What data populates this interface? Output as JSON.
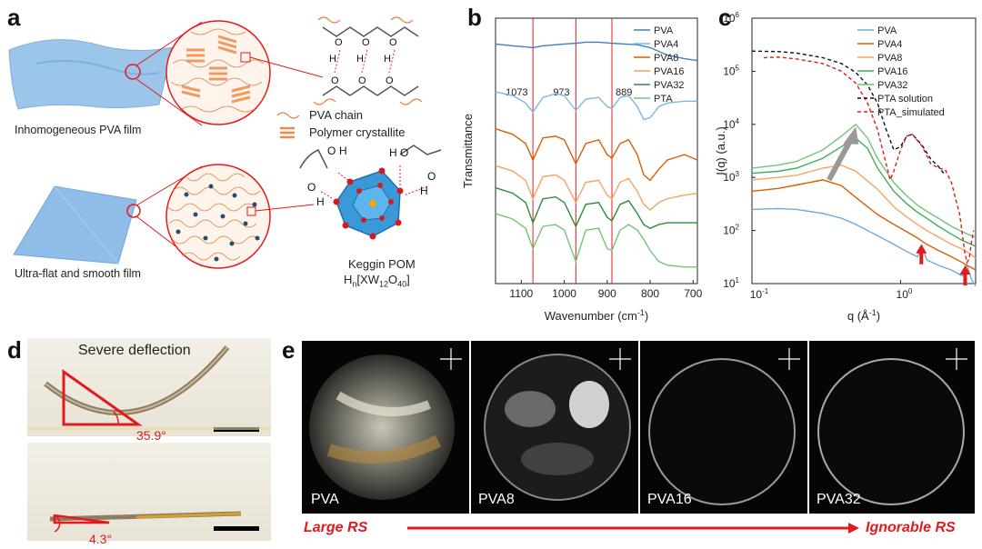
{
  "panel_a": {
    "label": "a",
    "film1_caption": "Inhomogeneous PVA film",
    "film2_caption": "Ultra-flat and smooth film",
    "legend_chain": "PVA chain",
    "legend_crystallite": "Polymer crystallite",
    "pom_title": "Keggin POM",
    "pom_formula_main": "H",
    "pom_formula_sub_n": "n",
    "pom_formula_a": "[XW",
    "pom_formula_sub_12": "12",
    "pom_formula_b": "O",
    "pom_formula_sub_40": "40",
    "pom_formula_c": "]",
    "atom_O": "O",
    "atom_H": "H"
  },
  "panel_b": {
    "label": "b",
    "chart_data": {
      "type": "line",
      "title": "",
      "xlabel": "Wavenumber (cm",
      "xlabel_sup": "-1",
      "xlabel_end": ")",
      "ylabel": "Transmittance",
      "xlim": [
        1160,
        690
      ],
      "xticks": [
        "1100",
        "1000",
        "900",
        "800",
        "700"
      ],
      "xtick_values": [
        1100,
        1000,
        900,
        800,
        700
      ],
      "reference_lines": [
        1073,
        973,
        889
      ],
      "reference_labels": [
        "1073",
        "973",
        "889"
      ],
      "series": [
        {
          "name": "PVA",
          "color": "#3f7fbf",
          "x": [
            1160,
            1120,
            1090,
            1073,
            1050,
            1000,
            973,
            950,
            920,
            889,
            860,
            830,
            800,
            760,
            720,
            690
          ],
          "y": [
            8.9,
            8.85,
            8.82,
            8.8,
            8.85,
            8.9,
            8.92,
            8.95,
            8.95,
            8.92,
            8.9,
            8.88,
            8.8,
            8.6,
            8.5,
            8.45
          ]
        },
        {
          "name": "PVA4",
          "color": "#7fb7e0",
          "x": [
            1160,
            1120,
            1090,
            1073,
            1050,
            1020,
            1000,
            973,
            950,
            920,
            900,
            889,
            870,
            850,
            830,
            815,
            800,
            780,
            760,
            720,
            690
          ],
          "y": [
            7.6,
            7.5,
            7.3,
            7.05,
            7.45,
            7.55,
            7.5,
            7.1,
            7.4,
            7.45,
            7.2,
            7.15,
            7.45,
            7.5,
            7.2,
            6.85,
            6.9,
            7.2,
            7.3,
            7.35,
            7.35
          ]
        },
        {
          "name": "PVA8",
          "color": "#d95f02",
          "x": [
            1160,
            1120,
            1090,
            1073,
            1050,
            1020,
            1000,
            973,
            950,
            920,
            900,
            889,
            870,
            850,
            830,
            815,
            800,
            780,
            760,
            720,
            690
          ],
          "y": [
            6.6,
            6.45,
            6.2,
            5.75,
            6.35,
            6.4,
            6.3,
            5.65,
            6.2,
            6.3,
            5.9,
            5.8,
            6.2,
            6.3,
            5.9,
            5.35,
            5.2,
            5.5,
            5.75,
            5.9,
            5.75
          ]
        },
        {
          "name": "PVA16",
          "color": "#f4a460",
          "x": [
            1160,
            1120,
            1090,
            1073,
            1050,
            1020,
            1000,
            973,
            950,
            920,
            900,
            889,
            870,
            850,
            830,
            815,
            800,
            780,
            760,
            720,
            690
          ],
          "y": [
            5.6,
            5.45,
            5.2,
            4.7,
            5.3,
            5.35,
            5.2,
            4.6,
            5.15,
            5.2,
            4.8,
            4.7,
            5.15,
            5.25,
            4.9,
            4.55,
            4.4,
            4.6,
            4.7,
            4.8,
            4.85
          ]
        },
        {
          "name": "PVA32",
          "color": "#2e8b3a",
          "x": [
            1160,
            1120,
            1090,
            1073,
            1050,
            1020,
            1000,
            973,
            950,
            920,
            900,
            889,
            870,
            850,
            830,
            815,
            800,
            780,
            760,
            720,
            690
          ],
          "y": [
            5.0,
            4.85,
            4.6,
            4.05,
            4.7,
            4.75,
            4.6,
            3.95,
            4.55,
            4.6,
            4.2,
            4.1,
            4.55,
            4.65,
            4.3,
            4.0,
            3.9,
            4.0,
            4.05,
            4.05,
            4.05
          ]
        },
        {
          "name": "PTA",
          "color": "#74c476",
          "x": [
            1160,
            1120,
            1090,
            1073,
            1050,
            1020,
            1000,
            973,
            950,
            920,
            900,
            889,
            870,
            850,
            830,
            815,
            800,
            780,
            760,
            720,
            690
          ],
          "y": [
            4.3,
            4.15,
            3.9,
            3.35,
            3.95,
            4.0,
            3.85,
            3.0,
            3.85,
            3.9,
            3.35,
            3.3,
            3.85,
            4.0,
            3.85,
            3.6,
            3.3,
            3.0,
            2.9,
            2.85,
            2.85
          ]
        }
      ]
    }
  },
  "panel_c": {
    "label": "c",
    "chart_data": {
      "type": "line",
      "title": "",
      "xlabel": "q (Å",
      "xlabel_sup": "-1",
      "xlabel_end": ")",
      "ylabel": "I(q) (a.u.)",
      "xscale": "log",
      "yscale": "log",
      "xlim": [
        0.1,
        3.2
      ],
      "ylim": [
        10,
        1000000
      ],
      "xtick_labels": [
        "10",
        "10"
      ],
      "xtick_label_exps": [
        "-1",
        "0"
      ],
      "ytick_labels": [
        "10",
        "10",
        "10",
        "10",
        "10",
        "10"
      ],
      "ytick_label_exps": [
        "1",
        "2",
        "3",
        "4",
        "5",
        "6"
      ],
      "series": [
        {
          "name": "PVA",
          "color": "#6aaed6",
          "x": [
            0.1,
            0.15,
            0.2,
            0.3,
            0.4,
            0.5,
            0.7,
            0.9,
            1.1,
            1.3,
            1.4,
            1.5,
            1.8,
            2.2,
            2.6,
            2.8,
            3.0,
            3.2
          ],
          "y": [
            250,
            260,
            250,
            210,
            170,
            130,
            80,
            55,
            40,
            32,
            50,
            28,
            22,
            18,
            14,
            22,
            12,
            9
          ]
        },
        {
          "name": "PVA4",
          "color": "#d95f02",
          "x": [
            0.1,
            0.15,
            0.2,
            0.3,
            0.4,
            0.5,
            0.7,
            0.9,
            1.1,
            1.3,
            1.5,
            1.8,
            2.2,
            2.6,
            2.8,
            3.0,
            3.2
          ],
          "y": [
            550,
            620,
            720,
            900,
            700,
            420,
            200,
            130,
            95,
            72,
            55,
            42,
            32,
            25,
            22,
            20,
            18
          ]
        },
        {
          "name": "PVA8",
          "color": "#f4a460",
          "x": [
            0.1,
            0.15,
            0.2,
            0.3,
            0.4,
            0.5,
            0.7,
            0.9,
            1.1,
            1.3,
            1.5,
            1.8,
            2.2,
            2.6,
            3.0,
            3.2
          ],
          "y": [
            900,
            1000,
            1100,
            1500,
            1700,
            1300,
            600,
            280,
            180,
            130,
            100,
            75,
            55,
            45,
            35,
            30
          ]
        },
        {
          "name": "PVA16",
          "color": "#41ab5d",
          "x": [
            0.1,
            0.15,
            0.2,
            0.3,
            0.4,
            0.5,
            0.6,
            0.7,
            0.9,
            1.1,
            1.3,
            1.5,
            1.8,
            2.2,
            2.6,
            3.0,
            3.2
          ],
          "y": [
            1200,
            1300,
            1500,
            2300,
            3800,
            5500,
            3500,
            1500,
            550,
            320,
            220,
            170,
            120,
            85,
            65,
            55,
            50
          ]
        },
        {
          "name": "PVA32",
          "color": "#74c476",
          "x": [
            0.1,
            0.15,
            0.2,
            0.3,
            0.4,
            0.5,
            0.6,
            0.7,
            0.9,
            1.1,
            1.3,
            1.5,
            1.8,
            2.2,
            2.6,
            3.0,
            3.2
          ],
          "y": [
            1500,
            1700,
            2000,
            3300,
            6000,
            10000,
            5500,
            2300,
            800,
            450,
            300,
            230,
            170,
            120,
            95,
            80,
            75
          ]
        },
        {
          "name": "PTA solution",
          "color": "#111111",
          "dash": "4,3",
          "x": [
            0.1,
            0.15,
            0.2,
            0.3,
            0.4,
            0.5,
            0.6,
            0.7,
            0.8,
            0.9,
            1.0,
            1.1,
            1.2,
            1.4,
            1.6,
            1.8,
            2.0
          ],
          "y": [
            240000,
            235000,
            220000,
            180000,
            140000,
            95000,
            55000,
            25000,
            8000,
            3300,
            3800,
            6000,
            6500,
            4000,
            2200,
            1600,
            1100
          ]
        },
        {
          "name": "PTA_simulated",
          "color": "#e31a1c",
          "dash": "4,3",
          "x": [
            0.12,
            0.15,
            0.2,
            0.3,
            0.4,
            0.5,
            0.6,
            0.7,
            0.8,
            0.85,
            0.9,
            1.0,
            1.1,
            1.2,
            1.4,
            1.6,
            1.8,
            2.0,
            2.2,
            2.5,
            2.7,
            2.8,
            2.9,
            3.0,
            3.1
          ],
          "y": [
            180000,
            185000,
            170000,
            140000,
            100000,
            60000,
            25000,
            8000,
            1800,
            900,
            1300,
            3300,
            6000,
            6500,
            3800,
            1800,
            1500,
            1400,
            800,
            200,
            40,
            25,
            30,
            60,
            100
          ]
        }
      ]
    }
  },
  "panel_d": {
    "label": "d",
    "title": "Severe deflection",
    "angle1": "35.9°",
    "angle2": "4.3°"
  },
  "panel_e": {
    "label": "e",
    "samples": [
      "PVA",
      "PVA8",
      "PVA16",
      "PVA32"
    ],
    "left_caption": "Large RS",
    "right_caption": "Ignorable RS"
  }
}
